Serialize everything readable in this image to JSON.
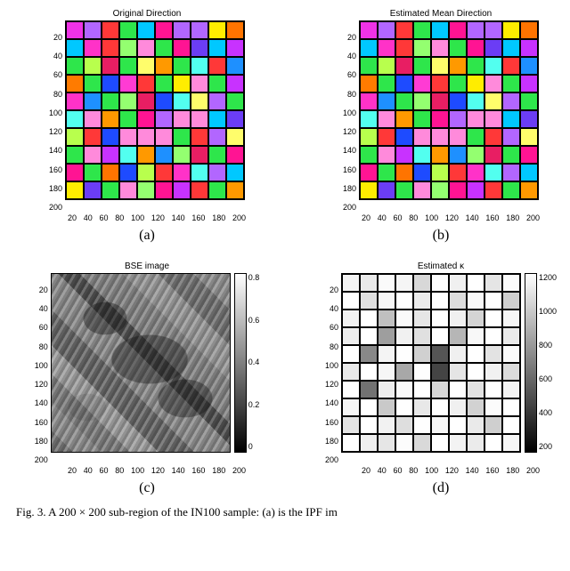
{
  "panels": {
    "a": {
      "title": "Original Direction",
      "sublabel": "(a)",
      "type": "segmentation-color",
      "xticks": [
        "20",
        "40",
        "60",
        "80",
        "100",
        "120",
        "140",
        "160",
        "180",
        "200"
      ],
      "yticks": [
        "20",
        "40",
        "60",
        "80",
        "100",
        "120",
        "140",
        "160",
        "180",
        "200"
      ],
      "cell_colors": [
        "#f032e6",
        "#b266ff",
        "#ff3838",
        "#2ee64b",
        "#00c8ff",
        "#ff1493",
        "#b266ff",
        "#b266ff",
        "#ffed00",
        "#ff7400",
        "#00c8ff",
        "#ff32c8",
        "#ff3838",
        "#94ff70",
        "#ff8adb",
        "#2ee64b",
        "#ff1493",
        "#6b3df5",
        "#00c8ff",
        "#c832ff",
        "#2ee64b",
        "#b8ff4d",
        "#e81e63",
        "#2ee64b",
        "#fffd6b",
        "#ff9900",
        "#2ee64b",
        "#52ffef",
        "#ff3838",
        "#1e90ff",
        "#ff7b00",
        "#2ee64b",
        "#1e4bff",
        "#ff3bd4",
        "#ff3838",
        "#2ee64b",
        "#ffed00",
        "#ff8adb",
        "#2ee64b",
        "#c832ff",
        "#ff32c8",
        "#1e90ff",
        "#2ee64b",
        "#94ff70",
        "#e81e63",
        "#1e4bff",
        "#52ffef",
        "#fffd6b",
        "#b266ff",
        "#2ee64b",
        "#52ffef",
        "#ff8adb",
        "#ff9900",
        "#2ee64b",
        "#ff1493",
        "#b266ff",
        "#ff8adb",
        "#ff8adb",
        "#00c8ff",
        "#6b3df5",
        "#b8ff4d",
        "#ff3838",
        "#1e4bff",
        "#ff8adb",
        "#ff8adb",
        "#ff8adb",
        "#2ee64b",
        "#ff3838",
        "#b266ff",
        "#fffd6b",
        "#2ee64b",
        "#ff8adb",
        "#c832ff",
        "#52ffef",
        "#ff9900",
        "#1e90ff",
        "#94ff70",
        "#e81e63",
        "#2ee64b",
        "#ff1493",
        "#ff1493",
        "#2ee64b",
        "#ff7400",
        "#1e4bff",
        "#b8ff4d",
        "#ff3838",
        "#ff32c8",
        "#52ffef",
        "#b266ff",
        "#00c8ff",
        "#ffed00",
        "#6b3df5",
        "#2ee64b",
        "#ff8adb",
        "#94ff70",
        "#ff1493",
        "#c832ff",
        "#ff3838",
        "#2ee64b",
        "#ff9900"
      ]
    },
    "b": {
      "title": "Estimated Mean Direction",
      "sublabel": "(b)",
      "type": "segmentation-color",
      "xticks": [
        "20",
        "40",
        "60",
        "80",
        "100",
        "120",
        "140",
        "160",
        "180",
        "200"
      ],
      "yticks": [
        "20",
        "40",
        "60",
        "80",
        "100",
        "120",
        "140",
        "160",
        "180",
        "200"
      ],
      "cell_colors": [
        "#f032e6",
        "#b266ff",
        "#ff3838",
        "#2ee64b",
        "#00c8ff",
        "#ff1493",
        "#b266ff",
        "#b266ff",
        "#ffed00",
        "#ff7400",
        "#00c8ff",
        "#ff32c8",
        "#ff3838",
        "#94ff70",
        "#ff8adb",
        "#2ee64b",
        "#ff1493",
        "#6b3df5",
        "#00c8ff",
        "#c832ff",
        "#2ee64b",
        "#b8ff4d",
        "#e81e63",
        "#2ee64b",
        "#fffd6b",
        "#ff9900",
        "#2ee64b",
        "#52ffef",
        "#ff3838",
        "#1e90ff",
        "#ff7b00",
        "#2ee64b",
        "#1e4bff",
        "#ff3bd4",
        "#ff3838",
        "#2ee64b",
        "#ffed00",
        "#ff8adb",
        "#2ee64b",
        "#c832ff",
        "#ff32c8",
        "#1e90ff",
        "#2ee64b",
        "#94ff70",
        "#e81e63",
        "#1e4bff",
        "#52ffef",
        "#fffd6b",
        "#b266ff",
        "#2ee64b",
        "#52ffef",
        "#ff8adb",
        "#ff9900",
        "#2ee64b",
        "#ff1493",
        "#b266ff",
        "#ff8adb",
        "#ff8adb",
        "#00c8ff",
        "#6b3df5",
        "#b8ff4d",
        "#ff3838",
        "#1e4bff",
        "#ff8adb",
        "#ff8adb",
        "#ff8adb",
        "#2ee64b",
        "#ff3838",
        "#b266ff",
        "#fffd6b",
        "#2ee64b",
        "#ff8adb",
        "#c832ff",
        "#52ffef",
        "#ff9900",
        "#1e90ff",
        "#94ff70",
        "#e81e63",
        "#2ee64b",
        "#ff1493",
        "#ff1493",
        "#2ee64b",
        "#ff7400",
        "#1e4bff",
        "#b8ff4d",
        "#ff3838",
        "#ff32c8",
        "#52ffef",
        "#b266ff",
        "#00c8ff",
        "#ffed00",
        "#6b3df5",
        "#2ee64b",
        "#ff8adb",
        "#94ff70",
        "#ff1493",
        "#c832ff",
        "#ff3838",
        "#2ee64b",
        "#ff9900"
      ]
    },
    "c": {
      "title": "BSE image",
      "sublabel": "(c)",
      "type": "grayscale-image",
      "xticks": [
        "20",
        "40",
        "60",
        "80",
        "100",
        "120",
        "140",
        "160",
        "180",
        "200"
      ],
      "yticks": [
        "20",
        "40",
        "60",
        "80",
        "100",
        "120",
        "140",
        "160",
        "180",
        "200"
      ],
      "colorbar_ticks": [
        "0.8",
        "0.6",
        "0.4",
        "0.2",
        "0"
      ],
      "colorbar_gradient": [
        "#ffffff",
        "#000000"
      ]
    },
    "d": {
      "title": "Estimated κ",
      "sublabel": "(d)",
      "type": "segmentation-gray",
      "xticks": [
        "20",
        "40",
        "60",
        "80",
        "100",
        "120",
        "140",
        "160",
        "180",
        "200"
      ],
      "yticks": [
        "20",
        "40",
        "60",
        "80",
        "100",
        "120",
        "140",
        "160",
        "180",
        "200"
      ],
      "colorbar_ticks": [
        "1200",
        "1000",
        "800",
        "600",
        "400",
        "200"
      ],
      "colorbar_gradient": [
        "#ffffff",
        "#000000"
      ],
      "cell_colors": [
        "#f4f4f4",
        "#eaeaea",
        "#fafafa",
        "#f5f5f5",
        "#d8d8d8",
        "#fefefe",
        "#f0f0f0",
        "#ffffff",
        "#e5e5e5",
        "#fbfbfb",
        "#ffffff",
        "#e0e0e0",
        "#f7f7f7",
        "#ffffff",
        "#ebebeb",
        "#fefefe",
        "#dcdcdc",
        "#f9f9f9",
        "#ffffff",
        "#cfcfcf",
        "#f2f2f2",
        "#ffffff",
        "#c0c0c0",
        "#fafafa",
        "#e6e6e6",
        "#ffffff",
        "#f0f0f0",
        "#d4d4d4",
        "#ffffff",
        "#f6f6f6",
        "#ededed",
        "#ffffff",
        "#9e9e9e",
        "#f1f1f1",
        "#e0e0e0",
        "#ffffff",
        "#b6b6b6",
        "#f8f8f8",
        "#ffffff",
        "#eaeaea",
        "#ffffff",
        "#888888",
        "#f4f4f4",
        "#fefefe",
        "#d0d0d0",
        "#555555",
        "#f0f0f0",
        "#ffffff",
        "#e3e3e3",
        "#fbfbfb",
        "#e9e9e9",
        "#ffffff",
        "#f6f6f6",
        "#a8a8a8",
        "#fefefe",
        "#444444",
        "#e5e5e5",
        "#ffffff",
        "#f1f1f1",
        "#dcdcdc",
        "#ffffff",
        "#727272",
        "#ededed",
        "#f9f9f9",
        "#ffffff",
        "#d7d7d7",
        "#fefefe",
        "#e2e2e2",
        "#ffffff",
        "#f4f4f4",
        "#f7f7f7",
        "#ffffff",
        "#c9c9c9",
        "#fefefe",
        "#e8e8e8",
        "#ffffff",
        "#f0f0f0",
        "#d2d2d2",
        "#fbfbfb",
        "#ffffff",
        "#e4e4e4",
        "#ffffff",
        "#f2f2f2",
        "#dedede",
        "#fefefe",
        "#f6f6f6",
        "#ffffff",
        "#eaeaea",
        "#cfcfcf",
        "#ffffff",
        "#ffffff",
        "#f0f0f0",
        "#e6e6e6",
        "#fcfcfc",
        "#d9d9d9",
        "#ffffff",
        "#f3f3f3",
        "#ebebeb",
        "#ffffff",
        "#f7f7f7"
      ]
    }
  },
  "caption": "Fig. 3.   A 200 × 200 sub-region of the IN100 sample: (a) is the IPF im"
}
